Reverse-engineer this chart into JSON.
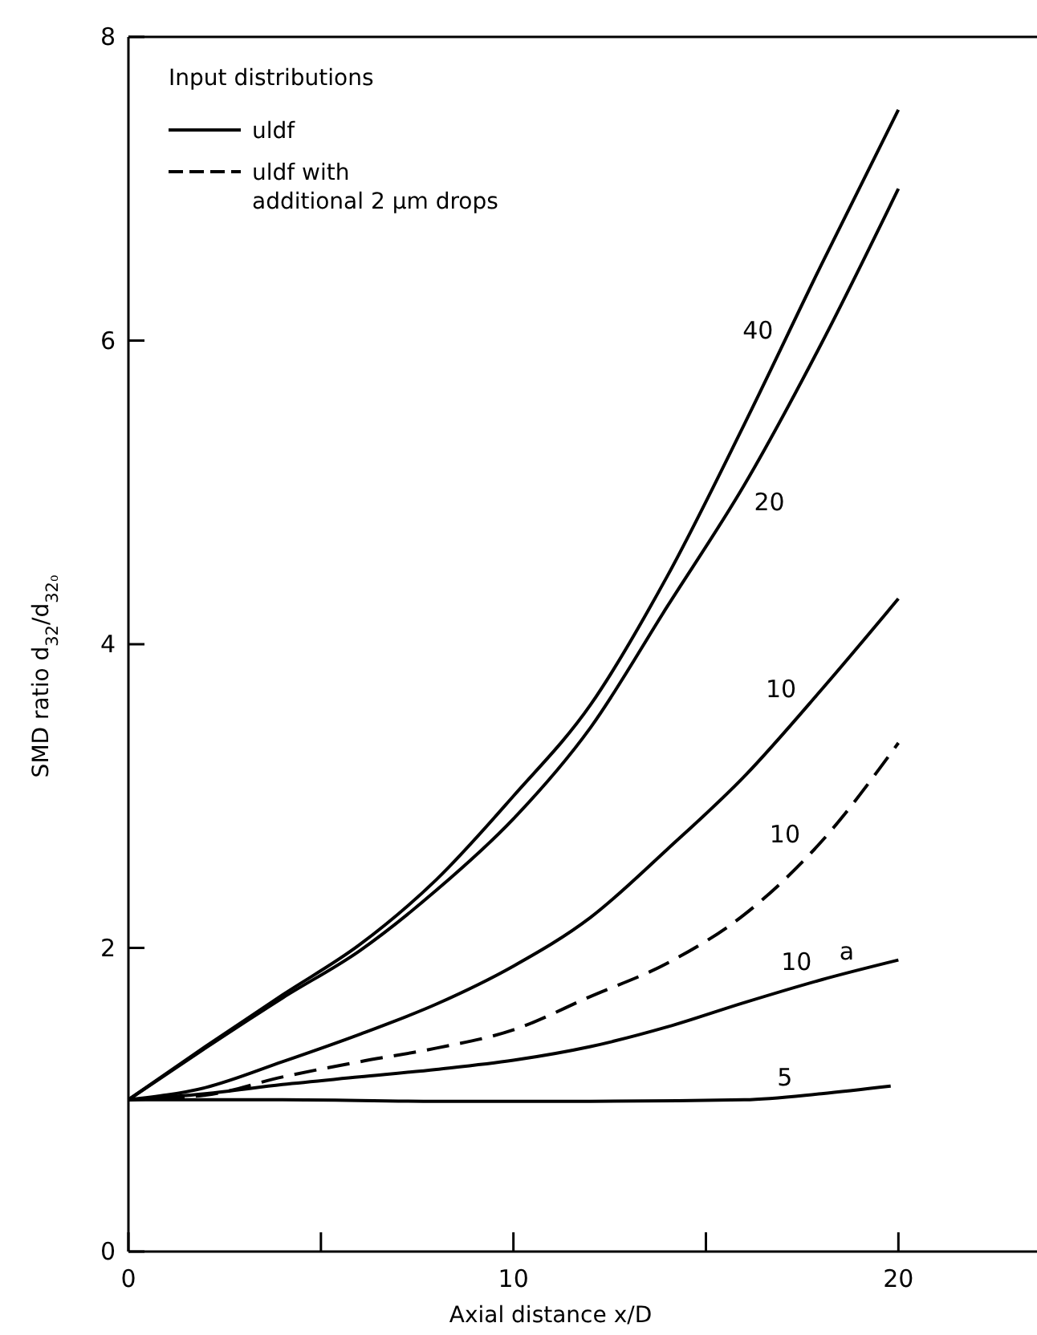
{
  "chart_data": {
    "type": "line",
    "xlabel": "Axial distance x/D",
    "ylabel": "SMD ratio d$_{32}$/d$_{32₀}$",
    "legend_title": "Input distributions",
    "legend": "top left",
    "grid": false,
    "marker": "none",
    "xlim": [
      0,
      23.6
    ],
    "ylim": [
      0,
      8
    ],
    "xticks": [
      0,
      {
        "value": 5,
        "label": null
      },
      10,
      {
        "value": 15,
        "label": null
      },
      20
    ],
    "yticks": [
      0,
      2,
      4,
      6,
      8
    ],
    "x": [
      0,
      2,
      4,
      6,
      8,
      10,
      12,
      14,
      16,
      18,
      20
    ],
    "series": [
      {
        "name": "uldf",
        "color": "#000000",
        "line_style": "solid",
        "values": [
          1,
          1.35,
          1.69,
          2.02,
          2.45,
          3.0,
          3.6,
          4.45,
          5.45,
          6.5,
          7.52
        ]
      },
      {
        "color": "#000000",
        "line_style": "solid",
        "values": [
          1,
          1.34,
          1.67,
          1.98,
          2.38,
          2.85,
          3.45,
          4.25,
          5.05,
          5.98,
          7.0
        ]
      },
      {
        "color": "#000000",
        "line_style": "solid",
        "values": [
          1,
          1.08,
          1.25,
          1.43,
          1.63,
          1.88,
          2.2,
          2.65,
          3.13,
          3.7,
          4.3
        ]
      },
      {
        "name": "uldf with additional 2 µm drops",
        "color": "#000000",
        "line_style": "dashed",
        "values": [
          1,
          1.03,
          1.15,
          1.25,
          1.34,
          1.46,
          1.68,
          1.9,
          2.22,
          2.7,
          3.35
        ]
      },
      {
        "color": "#000000",
        "line_style": "solid",
        "values": [
          1,
          1.04,
          1.1,
          1.15,
          1.2,
          1.26,
          1.35,
          1.48,
          1.64,
          1.79,
          1.92
        ]
      },
      {
        "color": "#000000",
        "line_style": "solid",
        "x": [
          0,
          4,
          8,
          12,
          16,
          18,
          19.8
        ],
        "values": [
          1,
          1.0,
          0.99,
          0.99,
          1.0,
          1.04,
          1.09
        ]
      }
    ],
    "annotations": [
      {
        "text": "40",
        "x": 17.0,
        "y": 5.95
      },
      {
        "text": "20",
        "x": 16.0,
        "y": 5.05
      },
      {
        "text": "10",
        "x": 17.6,
        "y": 3.59
      },
      {
        "text": "10",
        "x": 17.7,
        "y": 2.63
      },
      {
        "text": "10",
        "x": 18.0,
        "y": 1.79
      },
      {
        "text": "a",
        "x": 19.1,
        "y": 1.86
      },
      {
        "text": "5",
        "x": 17.5,
        "y": 1.03
      }
    ]
  }
}
